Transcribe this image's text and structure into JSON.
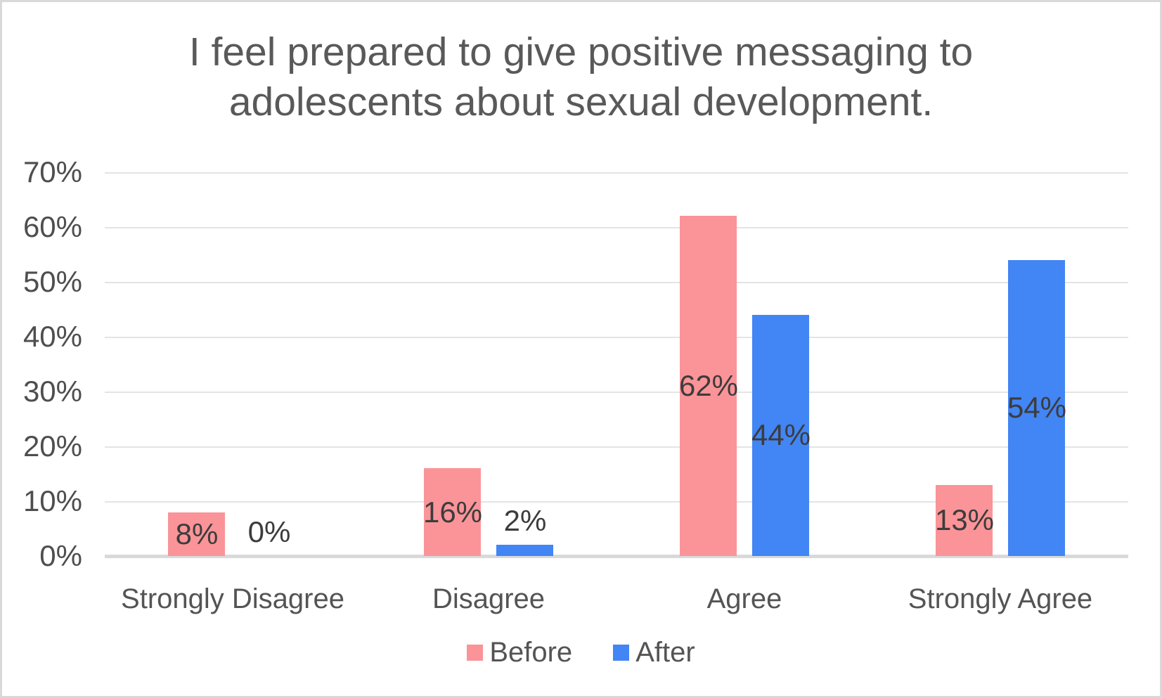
{
  "window": {
    "background": "#ffffff",
    "border_color": "#d9d9d9"
  },
  "colors": {
    "title_text": "#595959",
    "axis_text": "#4e4e4e",
    "category_text": "#545454",
    "data_label_text": "#3c3c3c",
    "gridline": "#e4e4e4",
    "axis_line": "#d9d9d9",
    "series_before": "#FA9498",
    "series_after": "#4285F4"
  },
  "chart_data": {
    "type": "bar",
    "title": "I feel prepared to give positive messaging to adolescents about sexual development.",
    "title_lines": [
      "I feel prepared to give positive messaging to",
      "adolescents about sexual development."
    ],
    "categories": [
      "Strongly Disagree",
      "Disagree",
      "Agree",
      "Strongly Agree"
    ],
    "series": [
      {
        "name": "Before",
        "color": "#FA9498",
        "values": [
          8,
          16,
          62,
          13
        ],
        "labels": [
          "8%",
          "16%",
          "62%",
          "13%"
        ]
      },
      {
        "name": "After",
        "color": "#4285F4",
        "values": [
          0,
          2,
          44,
          54
        ],
        "labels": [
          "0%",
          "2%",
          "44%",
          "54%"
        ]
      }
    ],
    "xlabel": "",
    "ylabel": "",
    "ylim": [
      0,
      70
    ],
    "y_ticks": [
      "0%",
      "10%",
      "20%",
      "30%",
      "40%",
      "50%",
      "60%",
      "70%"
    ],
    "grid": "horizontal",
    "legend_position": "bottom"
  }
}
